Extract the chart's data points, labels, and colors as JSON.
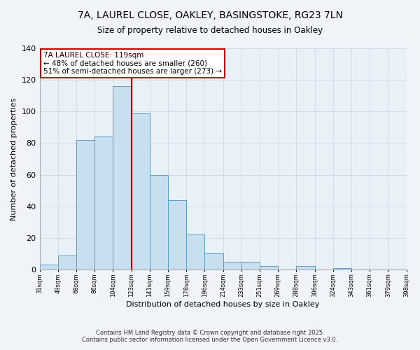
{
  "title": "7A, LAUREL CLOSE, OAKLEY, BASINGSTOKE, RG23 7LN",
  "subtitle": "Size of property relative to detached houses in Oakley",
  "xlabel": "Distribution of detached houses by size in Oakley",
  "ylabel": "Number of detached properties",
  "bar_values": [
    3,
    9,
    82,
    84,
    116,
    99,
    60,
    44,
    22,
    10,
    5,
    5,
    2,
    0,
    2,
    0,
    1,
    0,
    0,
    0
  ],
  "bar_labels": [
    "31sqm",
    "49sqm",
    "68sqm",
    "86sqm",
    "104sqm",
    "123sqm",
    "141sqm",
    "159sqm",
    "178sqm",
    "196sqm",
    "214sqm",
    "233sqm",
    "251sqm",
    "269sqm",
    "288sqm",
    "306sqm",
    "324sqm",
    "343sqm",
    "361sqm",
    "379sqm",
    "398sqm"
  ],
  "bar_color": "#c8dff0",
  "bar_edge_color": "#5b9ec9",
  "vline_color": "#cc0000",
  "vline_x": 5,
  "annotation_title": "7A LAUREL CLOSE: 119sqm",
  "annotation_line1": "← 48% of detached houses are smaller (260)",
  "annotation_line2": "51% of semi-detached houses are larger (273) →",
  "annotation_box_color": "#ffffff",
  "annotation_box_edge": "#cc0000",
  "ylim": [
    0,
    140
  ],
  "yticks": [
    0,
    20,
    40,
    60,
    80,
    100,
    120,
    140
  ],
  "grid_color": "#d0dce8",
  "background_color": "#f0f4f8",
  "plot_bg_color": "#e8f0f8",
  "footer_line1": "Contains HM Land Registry data © Crown copyright and database right 2025.",
  "footer_line2": "Contains public sector information licensed under the Open Government Licence v3.0."
}
